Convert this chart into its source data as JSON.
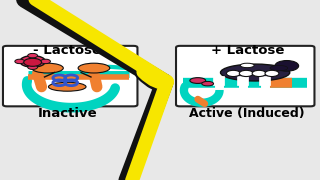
{
  "background_color": "#e8e8e8",
  "title_left": "- Lactose",
  "title_right": "+ Lactose",
  "label_left": "Inactive",
  "label_right": "Active (Induced)",
  "arrow_color": "#f7e600",
  "arrow_edge_color": "#111111",
  "panel_bg": "#ffffff",
  "panel_edge": "#222222",
  "cyan": "#00d4c0",
  "orange": "#f08030",
  "red_pink": "#e03060",
  "blue": "#3355cc",
  "dark": "#111111",
  "white": "#ffffff",
  "dark_purple": "#282040"
}
